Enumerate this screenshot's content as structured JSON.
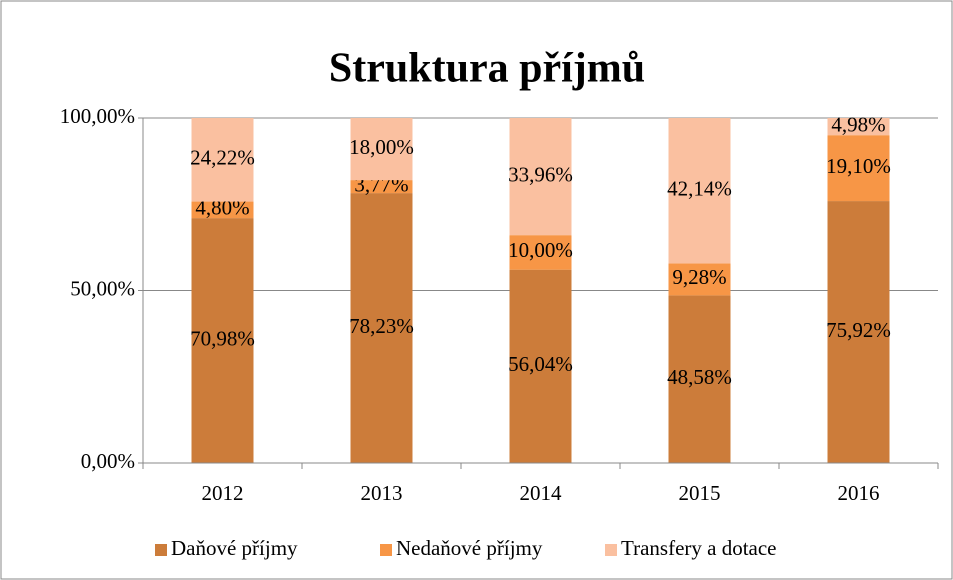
{
  "chart_data": {
    "type": "stacked_bar",
    "title": "Struktura příjmů",
    "categories": [
      "2012",
      "2013",
      "2014",
      "2015",
      "2016"
    ],
    "series": [
      {
        "name": "Daňové příjmy",
        "color": "#cc7c3a",
        "values": [
          70.98,
          78.23,
          56.04,
          48.58,
          75.92
        ],
        "value_labels": [
          "70,98%",
          "78,23%",
          "56,04%",
          "48,58%",
          "75,92%"
        ]
      },
      {
        "name": "Nedaňové příjmy",
        "color": "#f79646",
        "values": [
          4.8,
          3.77,
          10.0,
          9.28,
          19.1
        ],
        "value_labels": [
          "4,80%",
          "3,77%",
          "10,00%",
          "9,28%",
          "19,10%"
        ]
      },
      {
        "name": "Transfery a dotace",
        "color": "#fac0a0",
        "values": [
          24.22,
          18.0,
          33.96,
          42.14,
          4.98
        ],
        "value_labels": [
          "24,22%",
          "18,00%",
          "33,96%",
          "42,14%",
          "4,98%"
        ]
      }
    ],
    "ylim": [
      0,
      100
    ],
    "yticks": [
      {
        "value": 0,
        "label": "0,00%"
      },
      {
        "value": 50,
        "label": "50,00%"
      },
      {
        "value": 100,
        "label": "100,00%"
      }
    ],
    "grid": true,
    "legend": "bottom"
  }
}
